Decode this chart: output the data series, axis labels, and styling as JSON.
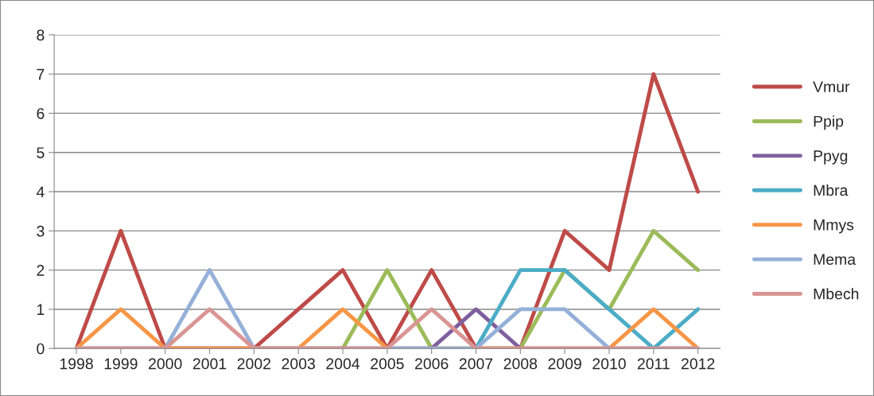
{
  "chart_data": {
    "type": "line",
    "categories": [
      "1998",
      "1999",
      "2000",
      "2001",
      "2002",
      "2003",
      "2004",
      "2005",
      "2006",
      "2007",
      "2008",
      "2009",
      "2010",
      "2011",
      "2012"
    ],
    "series": [
      {
        "name": "Vmur",
        "color": "#be4b48",
        "values": [
          0,
          3,
          0,
          0,
          0,
          1,
          2,
          0,
          2,
          0,
          0,
          3,
          2,
          7,
          4
        ]
      },
      {
        "name": "Ppip",
        "color": "#9bbb59",
        "values": [
          null,
          null,
          null,
          null,
          0,
          0,
          0,
          2,
          0,
          0,
          0,
          2,
          1,
          3,
          2
        ]
      },
      {
        "name": "Ppyg",
        "color": "#7f609e",
        "values": [
          0,
          0,
          0,
          0,
          0,
          0,
          0,
          0,
          0,
          1,
          0,
          0,
          0,
          0,
          0
        ]
      },
      {
        "name": "Mbra",
        "color": "#4bacc6",
        "values": [
          null,
          null,
          null,
          null,
          null,
          null,
          null,
          null,
          null,
          0,
          2,
          2,
          1,
          0,
          1
        ]
      },
      {
        "name": "Mmys",
        "color": "#f79646",
        "values": [
          0,
          1,
          0,
          0,
          0,
          0,
          1,
          0,
          0,
          0,
          0,
          0,
          0,
          1,
          0
        ]
      },
      {
        "name": "Mema",
        "color": "#95b0d8",
        "values": [
          0,
          0,
          0,
          2,
          0,
          0,
          0,
          0,
          0,
          0,
          1,
          1,
          0,
          0,
          0
        ]
      },
      {
        "name": "Mbech",
        "color": "#d99594",
        "values": [
          0,
          0,
          0,
          1,
          0,
          0,
          0,
          0,
          1,
          0,
          0,
          0,
          0,
          0,
          0
        ]
      }
    ],
    "ylim": [
      0,
      8
    ],
    "yticks": [
      0,
      1,
      2,
      3,
      4,
      5,
      6,
      7,
      8
    ],
    "grid": "y",
    "legend": "right",
    "marker": "none",
    "line_style": "solid"
  }
}
